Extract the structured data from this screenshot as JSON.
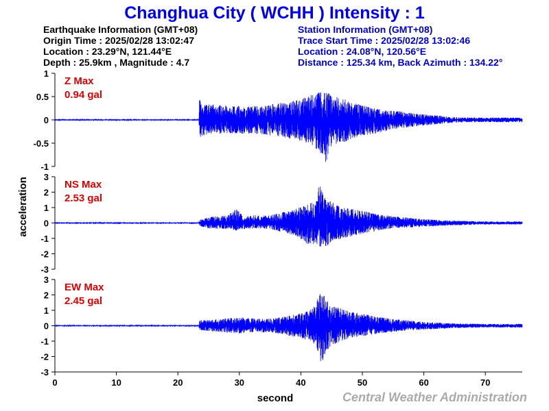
{
  "title": "Changhua City ( WCHH ) Intensity : 1",
  "earthquake_info": {
    "header": "Earthquake Information (GMT+08)",
    "origin_time": "Origin Time : 2025/02/28 13:02:47",
    "location": "Location : 23.29°N, 121.44°E",
    "depth_magnitude": "Depth : 25.9km , Magnitude : 4.7"
  },
  "station_info": {
    "header": "Station Information (GMT+08)",
    "trace_start_time": "Trace Start Time : 2025/02/28 13:02:46",
    "location": "Location : 24.08°N, 120.56°E",
    "distance_azimuth": "Distance : 125.34 km, Back Azimuth : 134.22°"
  },
  "credit": "Central Weather Administration",
  "colors": {
    "title": "#0000ee",
    "station_text": "#0000cc",
    "trace": "#0000ff",
    "max_label": "#dd0000",
    "credit": "#aaaaaa"
  },
  "chart_data": {
    "type": "line",
    "xlabel": "second",
    "ylabel": "acceleration",
    "xlim": [
      0,
      76
    ],
    "x_ticks": [
      0,
      10,
      20,
      30,
      40,
      50,
      60,
      70
    ],
    "grid": false,
    "panels": [
      {
        "component": "Z",
        "max_label": "Z Max",
        "max_value": "0.94 gal",
        "ylim": [
          -1,
          1
        ],
        "y_ticks": [
          -1,
          -0.5,
          0,
          0.5,
          1
        ],
        "y_tick_labels": [
          "-1",
          "-0.5",
          "0",
          "0.5",
          "1"
        ],
        "envelope": {
          "t": [
            0,
            23.4,
            23.5,
            24,
            25,
            28,
            30,
            33,
            36,
            40,
            42,
            43,
            44,
            45,
            46,
            48,
            50,
            52,
            55,
            60,
            65,
            70,
            76
          ],
          "upper": [
            0.01,
            0.01,
            0.5,
            0.3,
            0.35,
            0.3,
            0.3,
            0.3,
            0.35,
            0.45,
            0.55,
            0.6,
            0.62,
            0.55,
            0.5,
            0.4,
            0.32,
            0.25,
            0.2,
            0.12,
            0.06,
            0.05,
            0.05
          ],
          "lower": [
            -0.01,
            -0.01,
            -0.45,
            -0.35,
            -0.3,
            -0.3,
            -0.3,
            -0.3,
            -0.35,
            -0.45,
            -0.55,
            -0.7,
            -0.93,
            -0.6,
            -0.5,
            -0.45,
            -0.35,
            -0.3,
            -0.2,
            -0.12,
            -0.06,
            -0.05,
            -0.05
          ]
        }
      },
      {
        "component": "NS",
        "max_label": "NS Max",
        "max_value": "2.53 gal",
        "ylim": [
          -3,
          3
        ],
        "y_ticks": [
          -3,
          -2,
          -1,
          0,
          1,
          2,
          3
        ],
        "y_tick_labels": [
          "-3",
          "-2",
          "-1",
          "0",
          "1",
          "2",
          "3"
        ],
        "envelope": {
          "t": [
            0,
            23.4,
            23.5,
            25,
            28,
            29.5,
            30.5,
            33,
            35,
            39,
            41,
            42.5,
            43,
            44,
            45,
            47,
            50,
            52,
            55,
            60,
            65,
            70,
            76
          ],
          "upper": [
            0.03,
            0.03,
            0.2,
            0.4,
            0.5,
            0.9,
            0.5,
            0.5,
            0.5,
            0.9,
            1.2,
            1.8,
            2.5,
            1.6,
            1.4,
            1.0,
            0.8,
            0.6,
            0.45,
            0.25,
            0.15,
            0.1,
            0.1
          ],
          "lower": [
            -0.03,
            -0.03,
            -0.2,
            -0.35,
            -0.4,
            -0.5,
            -0.4,
            -0.35,
            -0.4,
            -0.8,
            -1.4,
            -1.5,
            -1.6,
            -1.6,
            -1.2,
            -1.0,
            -0.7,
            -0.55,
            -0.35,
            -0.25,
            -0.15,
            -0.1,
            -0.1
          ]
        }
      },
      {
        "component": "EW",
        "max_label": "EW Max",
        "max_value": "2.45 gal",
        "ylim": [
          -3,
          3
        ],
        "y_ticks": [
          -3,
          -2,
          -1,
          0,
          1,
          2,
          3
        ],
        "y_tick_labels": [
          "-3",
          "-2",
          "-1",
          "0",
          "1",
          "2",
          "3"
        ],
        "envelope": {
          "t": [
            0,
            23.4,
            23.5,
            25,
            28,
            30,
            33,
            36,
            40,
            41.5,
            42.5,
            43.3,
            44.5,
            46,
            48,
            50,
            52,
            55,
            60,
            65,
            70,
            76
          ],
          "upper": [
            0.03,
            0.03,
            0.35,
            0.4,
            0.5,
            0.55,
            0.45,
            0.5,
            0.8,
            1.0,
            1.5,
            2.3,
            1.5,
            1.2,
            0.9,
            0.8,
            0.6,
            0.45,
            0.25,
            0.15,
            0.12,
            0.12
          ],
          "lower": [
            -0.03,
            -0.03,
            -0.3,
            -0.35,
            -0.45,
            -0.5,
            -0.4,
            -0.5,
            -0.8,
            -1.0,
            -1.3,
            -2.45,
            -1.5,
            -1.1,
            -0.8,
            -0.7,
            -0.55,
            -0.4,
            -0.25,
            -0.15,
            -0.12,
            -0.12
          ]
        }
      }
    ]
  }
}
